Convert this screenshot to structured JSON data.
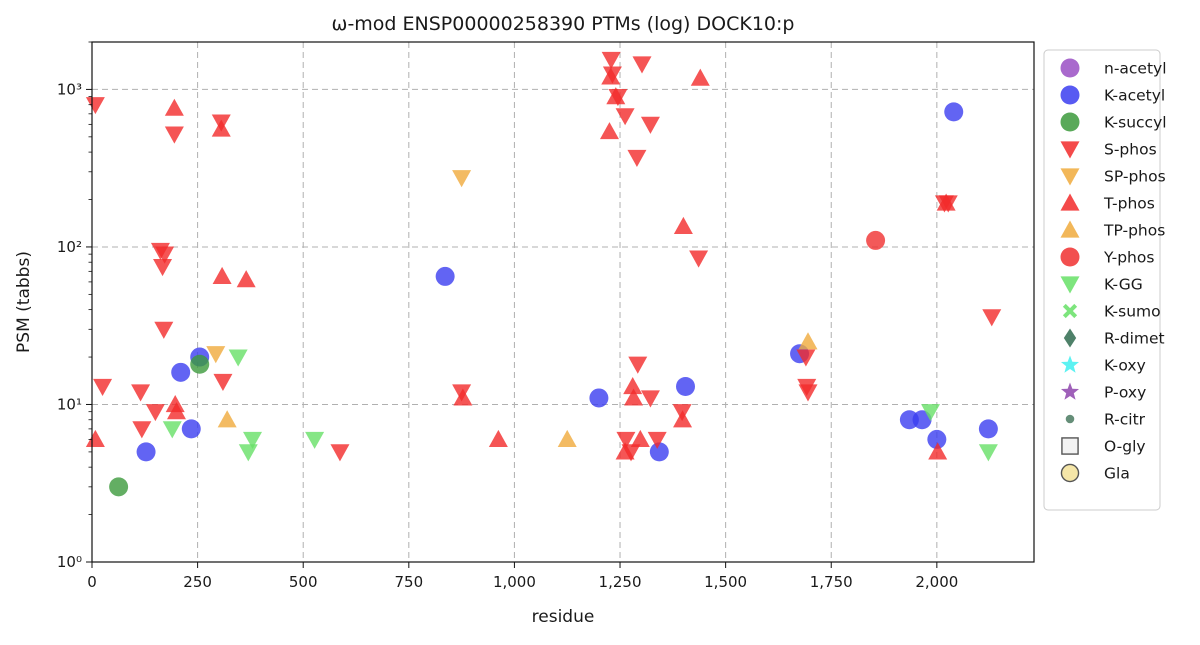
{
  "chart_data": {
    "type": "scatter",
    "title": "ω-mod ENSP00000258390 PTMs (log) DOCK10:p",
    "xlabel": "residue",
    "ylabel": "PSM (tabbs)",
    "xlim": [
      0,
      2230
    ],
    "ylim": [
      1,
      2000
    ],
    "y_scale": "log",
    "grid": true,
    "legend_placement": "outside-right",
    "x_ticks": [
      0,
      250,
      500,
      750,
      1000,
      1250,
      1500,
      1750,
      2000
    ],
    "x_tick_labels": [
      "0",
      "250",
      "500",
      "750",
      "1,000",
      "1,250",
      "1,500",
      "1,750",
      "2,000"
    ],
    "y_ticks": [
      1,
      10,
      100,
      1000
    ],
    "y_tick_labels": [
      "10⁰",
      "10¹",
      "10²",
      "10³"
    ],
    "series": [
      {
        "name": "n-acetyl",
        "marker": "circle",
        "color": "#9a4fc4",
        "points": []
      },
      {
        "name": "K-acetyl",
        "marker": "circle",
        "color": "#3b3df0",
        "points": [
          [
            128,
            5
          ],
          [
            210,
            16
          ],
          [
            235,
            7
          ],
          [
            255,
            20
          ],
          [
            836,
            65
          ],
          [
            1200,
            11
          ],
          [
            1343,
            5
          ],
          [
            1405,
            13
          ],
          [
            1675,
            21
          ],
          [
            1935,
            8
          ],
          [
            1965,
            8
          ],
          [
            2000,
            6
          ],
          [
            2040,
            720
          ],
          [
            2122,
            7
          ]
        ]
      },
      {
        "name": "K-succyl",
        "marker": "circle",
        "color": "#3c9a3c",
        "points": [
          [
            63,
            3
          ],
          [
            255,
            18
          ]
        ]
      },
      {
        "name": "S-phos",
        "marker": "triangle-down",
        "color": "#f22a2a",
        "points": [
          [
            8,
            800
          ],
          [
            25,
            13
          ],
          [
            115,
            12
          ],
          [
            118,
            7
          ],
          [
            150,
            9
          ],
          [
            162,
            95
          ],
          [
            167,
            75
          ],
          [
            170,
            30
          ],
          [
            172,
            90
          ],
          [
            195,
            520
          ],
          [
            306,
            620
          ],
          [
            310,
            14
          ],
          [
            587,
            5
          ],
          [
            875,
            12
          ],
          [
            1229,
            1550
          ],
          [
            1232,
            1250
          ],
          [
            1245,
            900
          ],
          [
            1262,
            680
          ],
          [
            1264,
            6
          ],
          [
            1276,
            5
          ],
          [
            1290,
            370
          ],
          [
            1292,
            18
          ],
          [
            1302,
            1450
          ],
          [
            1322,
            600
          ],
          [
            1322,
            11
          ],
          [
            1338,
            6
          ],
          [
            1397,
            9
          ],
          [
            1436,
            85
          ],
          [
            1690,
            20
          ],
          [
            1692,
            13
          ],
          [
            1695,
            12
          ],
          [
            2018,
            190
          ],
          [
            2027,
            190
          ],
          [
            2130,
            36
          ]
        ]
      },
      {
        "name": "SP-phos",
        "marker": "triangle-down",
        "color": "#f0aa3c",
        "points": [
          [
            875,
            275
          ],
          [
            293,
            21
          ]
        ]
      },
      {
        "name": "T-phos",
        "marker": "triangle-up",
        "color": "#f22a2a",
        "points": [
          [
            8,
            6
          ],
          [
            195,
            760
          ],
          [
            197,
            10
          ],
          [
            200,
            9
          ],
          [
            306,
            560
          ],
          [
            308,
            65
          ],
          [
            365,
            62
          ],
          [
            878,
            11
          ],
          [
            962,
            6
          ],
          [
            1225,
            540
          ],
          [
            1228,
            1200
          ],
          [
            1240,
            900
          ],
          [
            1262,
            5
          ],
          [
            1280,
            13
          ],
          [
            1282,
            11
          ],
          [
            1298,
            6
          ],
          [
            1398,
            8
          ],
          [
            1400,
            135
          ],
          [
            1440,
            1180
          ],
          [
            2002,
            5
          ],
          [
            2022,
            190
          ]
        ]
      },
      {
        "name": "TP-phos",
        "marker": "triangle-up",
        "color": "#f0aa3c",
        "points": [
          [
            320,
            8
          ],
          [
            1125,
            6
          ],
          [
            1695,
            25
          ]
        ]
      },
      {
        "name": "Y-phos",
        "marker": "circle",
        "color": "#f03030",
        "points": [
          [
            1855,
            110
          ]
        ]
      },
      {
        "name": "K-GG",
        "marker": "triangle-down",
        "color": "#66e066",
        "points": [
          [
            190,
            7
          ],
          [
            346,
            20
          ],
          [
            370,
            5
          ],
          [
            380,
            6
          ],
          [
            527,
            6
          ],
          [
            1985,
            9
          ],
          [
            2122,
            5
          ]
        ]
      },
      {
        "name": "K-sumo",
        "marker": "x",
        "color": "#66e066",
        "points": []
      },
      {
        "name": "R-dimet",
        "marker": "diamond",
        "color": "#2f6b4f",
        "points": []
      },
      {
        "name": "K-oxy",
        "marker": "star",
        "color": "#3ff0f0",
        "points": []
      },
      {
        "name": "P-oxy",
        "marker": "star",
        "color": "#8e44ad",
        "points": []
      },
      {
        "name": "R-citr",
        "marker": "small-circle",
        "color": "#4a7a60",
        "points": []
      },
      {
        "name": "O-gly",
        "marker": "square-open",
        "color": "#555555",
        "points": []
      },
      {
        "name": "Gla",
        "marker": "circle-open",
        "color": "#f5e6a8",
        "points": []
      }
    ]
  }
}
